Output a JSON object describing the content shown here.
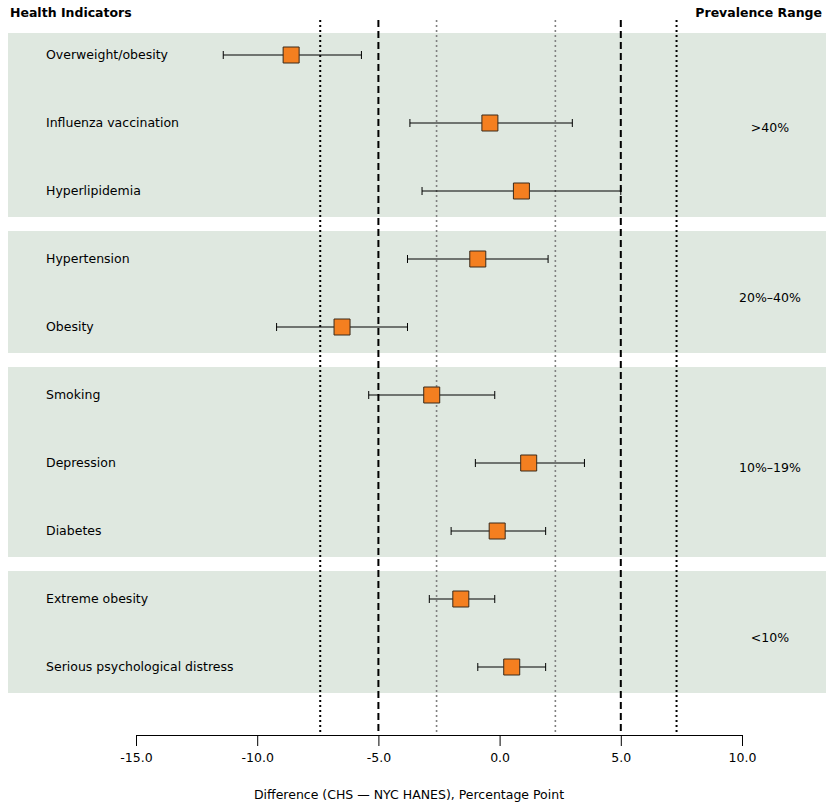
{
  "chart_data": {
    "type": "forest",
    "header_left": "Health Indicators",
    "header_right": "Prevalence Range",
    "x_label": "Difference (CHS — NYC HANES), Percentage Point",
    "categories": [
      "Overweight/obesity",
      "Influenza vaccination",
      "Hyperlipidemia",
      "Hypertension",
      "Obesity",
      "Smoking",
      "Depression",
      "Diabetes",
      "Extreme obesity",
      "Serious psychological distress"
    ],
    "groups": [
      ">40%",
      ">40%",
      ">40%",
      "20%–40%",
      "20%–40%",
      "10%–19%",
      "10%–19%",
      "10%–19%",
      "<10%",
      "<10%"
    ],
    "values": [
      -8.6,
      -0.4,
      0.9,
      -0.9,
      -6.5,
      -2.8,
      1.2,
      -0.1,
      -1.6,
      0.5
    ],
    "ci_lower": [
      -11.4,
      -3.7,
      -3.2,
      -3.8,
      -9.2,
      -5.4,
      -1.0,
      -2.0,
      -2.9,
      -0.9
    ],
    "ci_upper": [
      -5.7,
      3.0,
      5.0,
      2.0,
      -3.8,
      -0.2,
      3.5,
      1.9,
      -0.2,
      1.9
    ],
    "color": "#f47f20",
    "marker": "square",
    "xlim": [
      -15,
      10
    ],
    "xticks": [
      {
        "value": -15,
        "label": "-15.0"
      },
      {
        "value": -10,
        "label": "-10.0"
      },
      {
        "value": -5,
        "label": "-5.0"
      },
      {
        "value": 0,
        "label": "0.0"
      },
      {
        "value": 5,
        "label": "5.0"
      },
      {
        "value": 10,
        "label": "10.0"
      }
    ],
    "reference_lines": [
      {
        "value": -7.4,
        "line_style": "dotted",
        "color": "#000000"
      },
      {
        "value": -5,
        "line_style": "dashed",
        "color": "#000000"
      },
      {
        "value": -2.6,
        "line_style": "dotted",
        "color": "#808080"
      },
      {
        "value": 2.3,
        "line_style": "dotted",
        "color": "#808080"
      },
      {
        "value": 5,
        "line_style": "dashed",
        "color": "#000000"
      },
      {
        "value": 7.3,
        "line_style": "dotted",
        "color": "#000000"
      }
    ],
    "grid": false
  }
}
